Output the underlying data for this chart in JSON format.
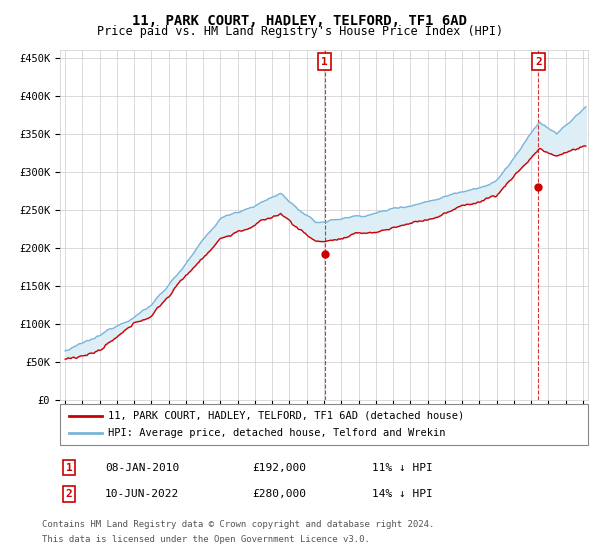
{
  "title": "11, PARK COURT, HADLEY, TELFORD, TF1 6AD",
  "subtitle": "Price paid vs. HM Land Registry's House Price Index (HPI)",
  "legend_line1": "11, PARK COURT, HADLEY, TELFORD, TF1 6AD (detached house)",
  "legend_line2": "HPI: Average price, detached house, Telford and Wrekin",
  "annotation1_date": "08-JAN-2010",
  "annotation1_price": "£192,000",
  "annotation1_hpi": "11% ↓ HPI",
  "annotation2_date": "10-JUN-2022",
  "annotation2_price": "£280,000",
  "annotation2_hpi": "14% ↓ HPI",
  "footnote_line1": "Contains HM Land Registry data © Crown copyright and database right 2024.",
  "footnote_line2": "This data is licensed under the Open Government Licence v3.0.",
  "hpi_color": "#7ab4d8",
  "hpi_fill_color": "#ddeef7",
  "price_color": "#cc0000",
  "vline_color": "#cc0000",
  "annotation_box_color": "#cc0000",
  "ylim": [
    0,
    460000
  ],
  "yticks": [
    0,
    50000,
    100000,
    150000,
    200000,
    250000,
    300000,
    350000,
    400000,
    450000
  ],
  "t1_year": 2010.04,
  "t2_year": 2022.42,
  "t1_price": 192000,
  "t2_price": 280000,
  "xmin": 1994.7,
  "xmax": 2025.3
}
